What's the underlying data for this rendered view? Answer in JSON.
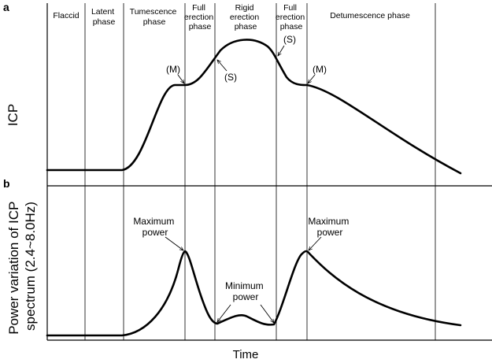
{
  "panel_a": {
    "label": "a",
    "ylabel": "ICP",
    "phases": [
      {
        "lines": [
          "Flaccid"
        ]
      },
      {
        "lines": [
          "Latent",
          "phase"
        ]
      },
      {
        "lines": [
          "Tumescence",
          "phase"
        ]
      },
      {
        "lines": [
          "Full",
          "erection",
          "phase"
        ]
      },
      {
        "lines": [
          "Rigid",
          "erection",
          "phase"
        ]
      },
      {
        "lines": [
          "Full",
          "erection",
          "phase"
        ]
      },
      {
        "lines": [
          "Detumescence phase"
        ]
      }
    ],
    "annotations": [
      "(M)",
      "(S)",
      "(S)",
      "(M)"
    ]
  },
  "panel_b": {
    "label": "b",
    "ylabel_lines": [
      "Power variation of ICP",
      "spectrum (2.4~8.0Hz)"
    ],
    "annotations": [
      {
        "lines": [
          "Maximum",
          "power"
        ]
      },
      {
        "lines": [
          "Minimum",
          "power"
        ]
      },
      {
        "lines": [
          "Maximum",
          "power"
        ]
      }
    ]
  },
  "xlabel": "Time"
}
